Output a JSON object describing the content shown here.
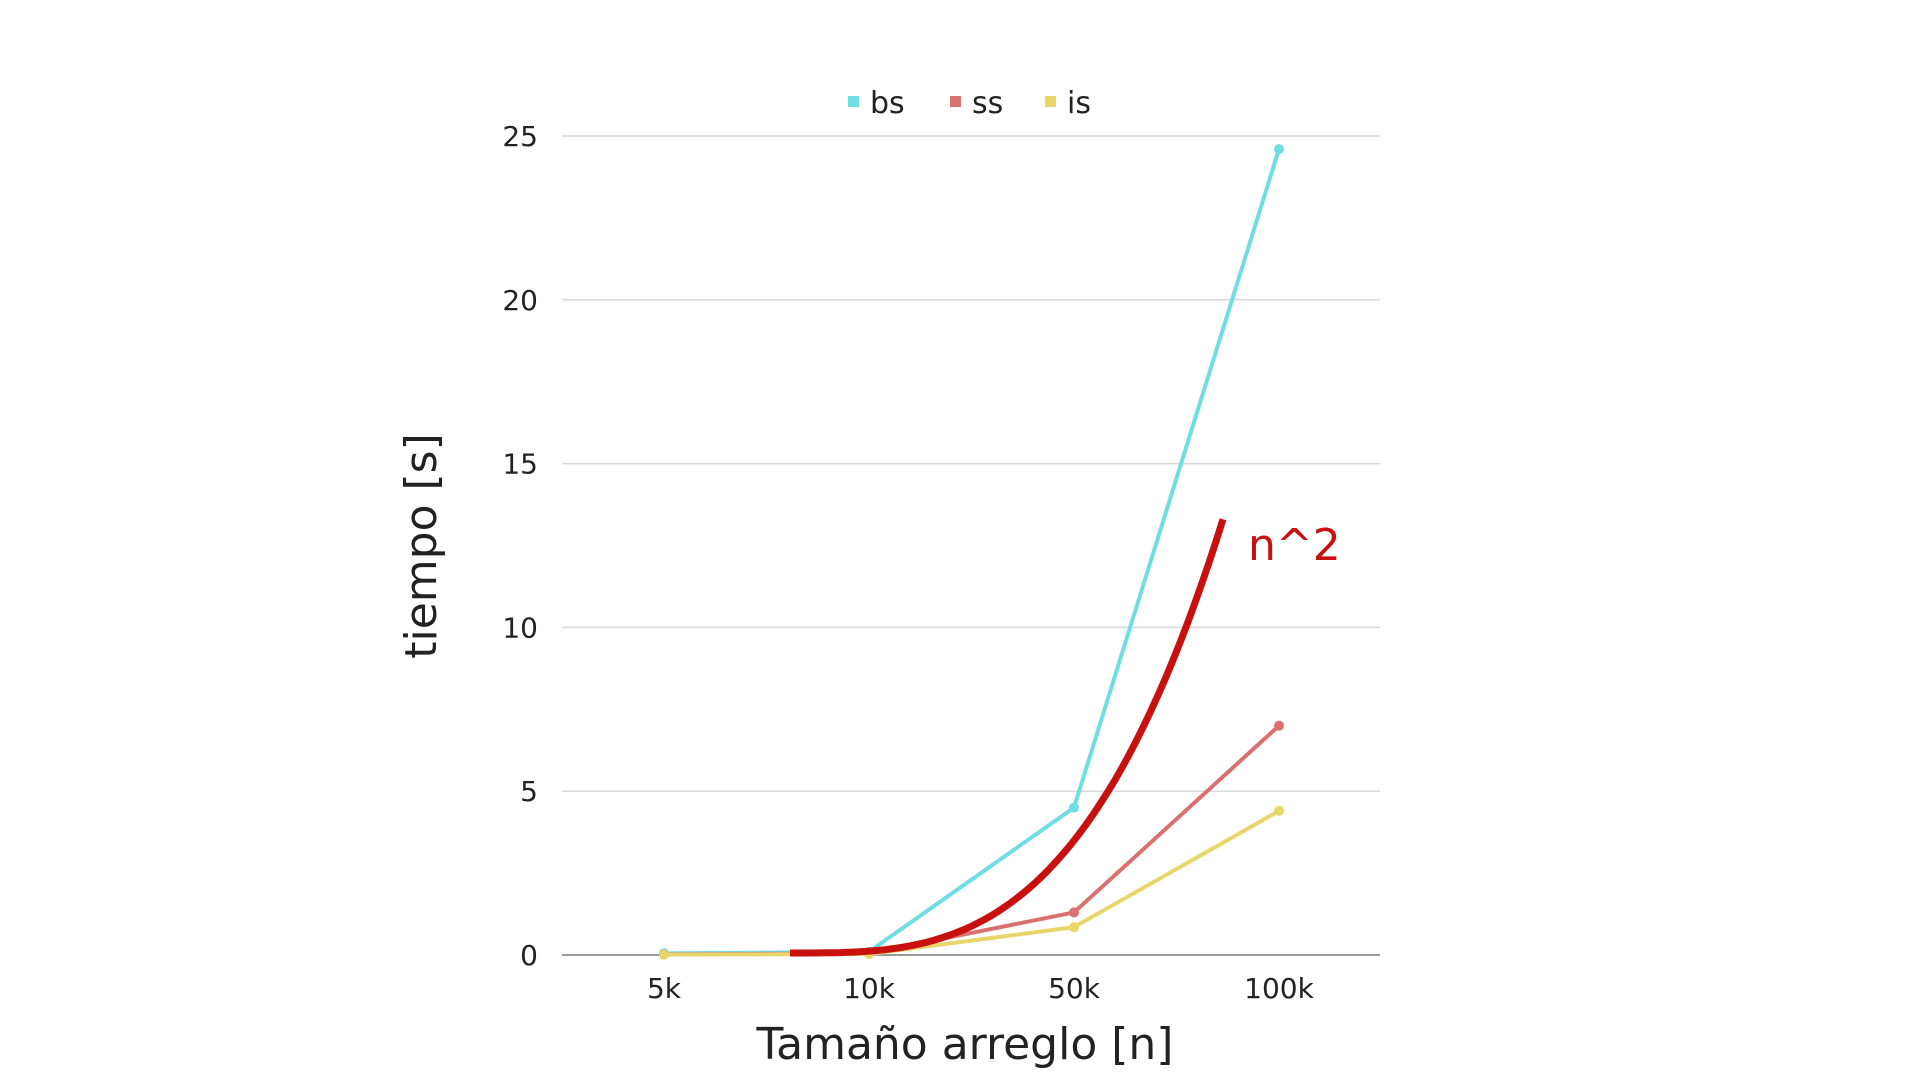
{
  "chart_data": {
    "type": "line",
    "title": "",
    "xlabel": "Tamaño arreglo [n]",
    "ylabel": "tiempo [s]",
    "categories": [
      "5k",
      "10k",
      "50k",
      "100k"
    ],
    "ylim": [
      0,
      25
    ],
    "yticks": [
      "0",
      "5",
      "10",
      "15",
      "20",
      "25"
    ],
    "grid": true,
    "legend_position": "top-center",
    "series": [
      {
        "name": "bs",
        "color": "#6fdde3",
        "values": [
          0.05,
          0.1,
          4.5,
          24.6
        ]
      },
      {
        "name": "ss",
        "color": "#d9716f",
        "values": [
          0.02,
          0.05,
          1.3,
          7.0
        ]
      },
      {
        "name": "is",
        "color": "#e8d66b",
        "values": [
          0.01,
          0.03,
          0.85,
          4.4
        ]
      }
    ],
    "annotation": {
      "label": "n^2",
      "color": "#c8100f",
      "description": "quadratic reference curve"
    }
  }
}
